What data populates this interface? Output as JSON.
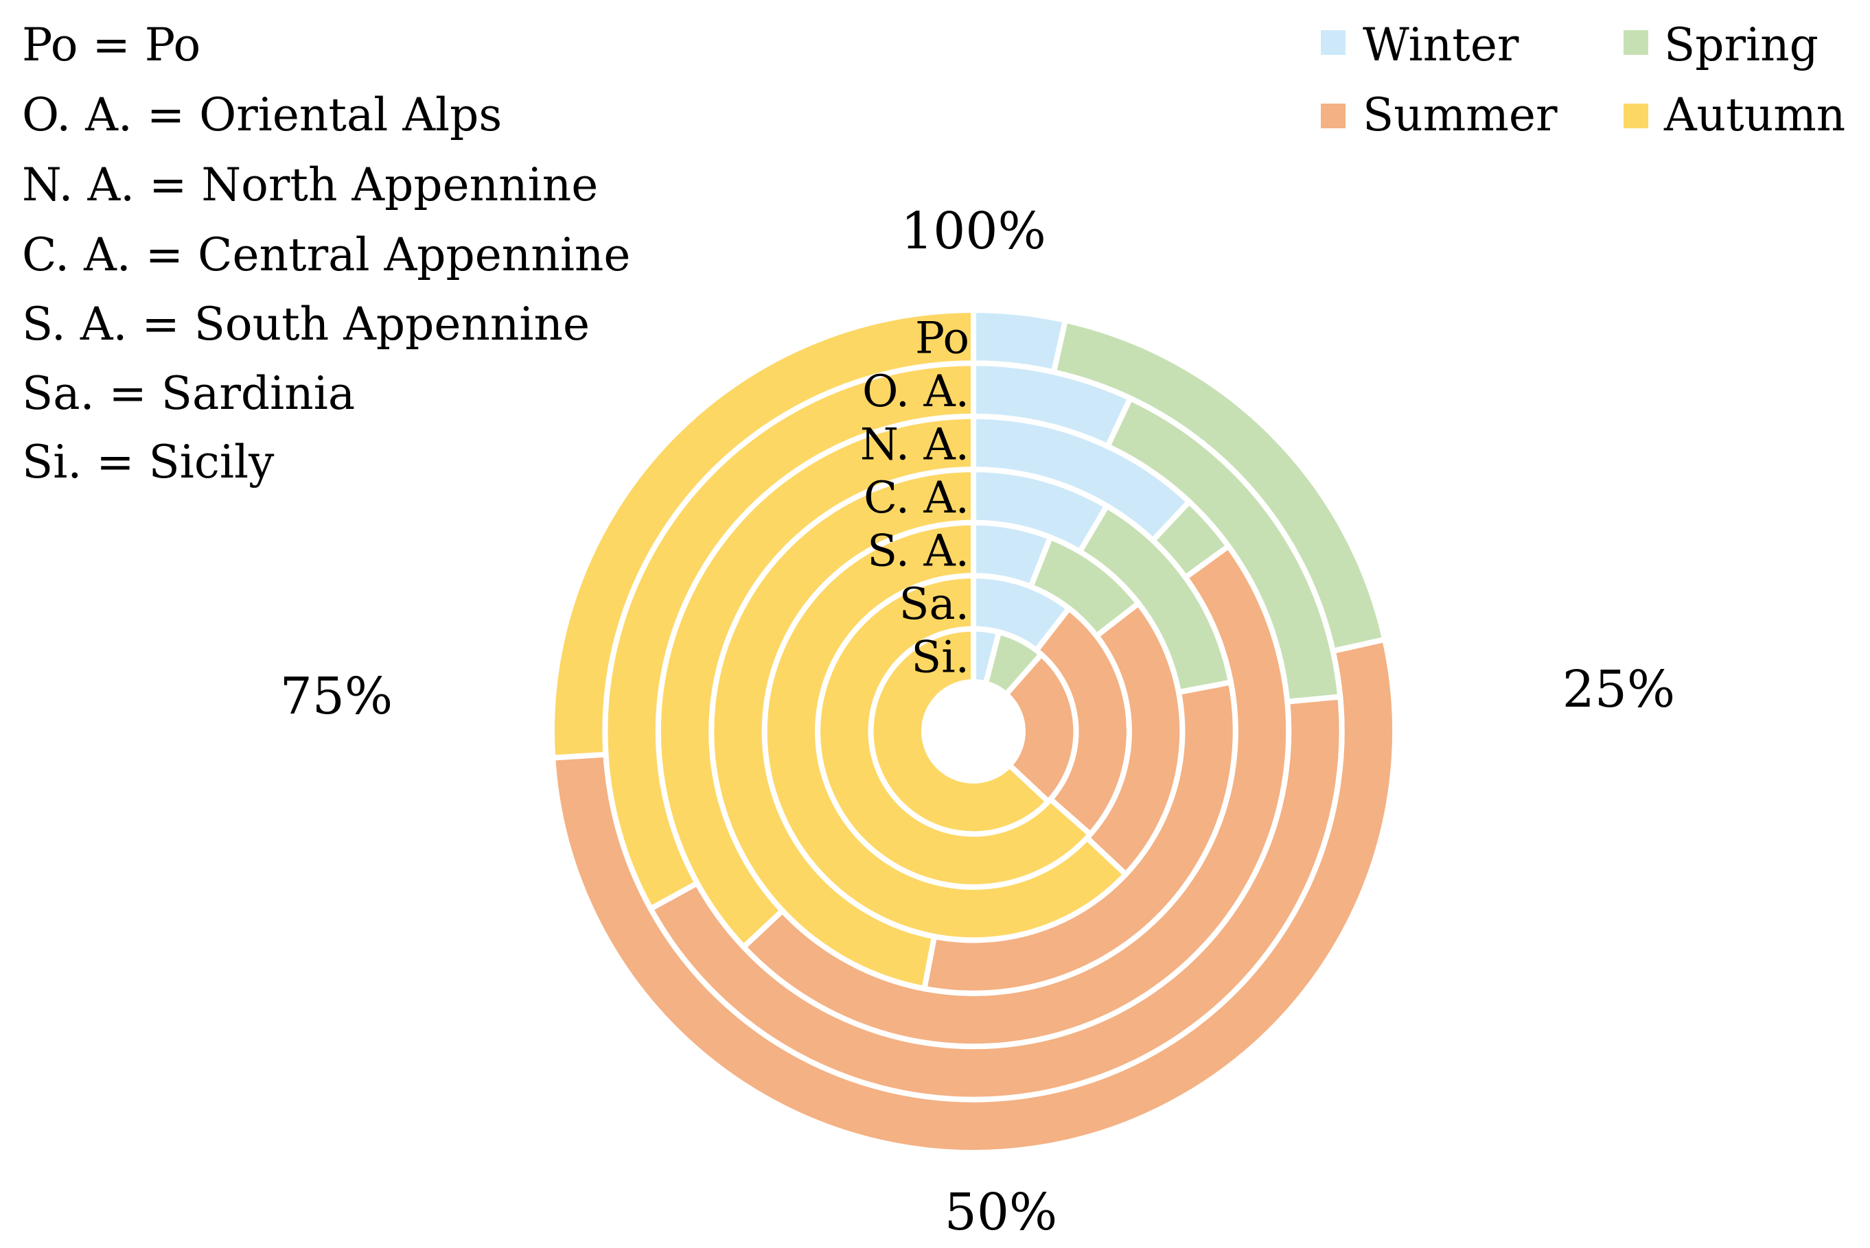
{
  "abbreviations": [
    "Po = Po",
    "O. A. = Oriental Alps",
    "N. A. = North Appennine",
    "C. A. = Central Appennine",
    "S. A. = South Appennine",
    "Sa. = Sardinia",
    "Si. = Sicily"
  ],
  "colors": {
    "Winter": "#cde9f9",
    "Spring": "#c6e0b4",
    "Summer": "#f4b183",
    "Autumn": "#fdd764"
  },
  "chart_data": {
    "type": "doughnut",
    "description_order": "rings listed from outermost to innermost",
    "categories": [
      "Winter",
      "Spring",
      "Summer",
      "Autumn"
    ],
    "legend_position": "top-right",
    "angle_labels": [
      "100%",
      "25%",
      "50%",
      "75%"
    ],
    "rings": [
      {
        "label": "Po",
        "values": [
          3.5,
          18.0,
          52.5,
          26.0
        ]
      },
      {
        "label": "O. A.",
        "values": [
          7.0,
          16.5,
          43.5,
          33.0
        ]
      },
      {
        "label": "N. A.",
        "values": [
          12.0,
          3.0,
          48.0,
          37.0
        ]
      },
      {
        "label": "C. A.",
        "values": [
          8.5,
          13.5,
          31.0,
          47.0
        ]
      },
      {
        "label": "S. A.",
        "values": [
          6.0,
          8.5,
          22.5,
          63.0
        ]
      },
      {
        "label": "Sa.",
        "values": [
          10.5,
          0.0,
          26.0,
          63.5
        ]
      },
      {
        "label": "Si.",
        "values": [
          4.0,
          7.5,
          25.5,
          63.0
        ]
      }
    ]
  }
}
